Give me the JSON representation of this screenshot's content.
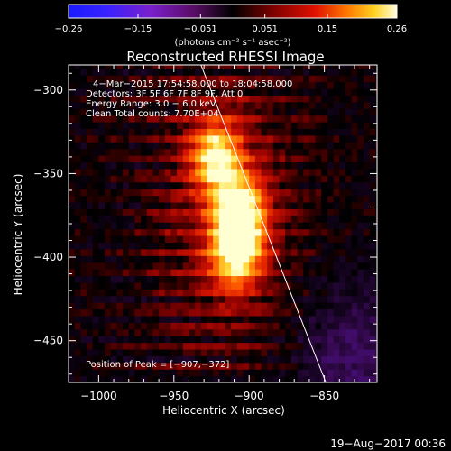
{
  "chart_data": {
    "type": "heatmap",
    "title": "Reconstructed RHESSI Image",
    "xlabel": "Heliocentric X (arcsec)",
    "ylabel": "Heliocentric Y (arcsec)",
    "xlim": [
      -1020,
      -815
    ],
    "ylim": [
      -475,
      -285
    ],
    "x_ticks": [
      -1000,
      -950,
      -900,
      -850
    ],
    "x_tick_labels": [
      "−1000",
      "−950",
      "−900",
      "−850"
    ],
    "y_ticks": [
      -300,
      -350,
      -400,
      -450
    ],
    "y_tick_labels": [
      "−300",
      "−350",
      "−400",
      "−450"
    ],
    "colorbar": {
      "range": [
        -0.26,
        0.26
      ],
      "ticks": [
        -0.26,
        -0.15,
        -0.051,
        0.051,
        0.15,
        0.26
      ],
      "tick_labels": [
        "−0.26",
        "−0.15",
        "−0.051",
        "0.051",
        "0.15",
        "0.26"
      ],
      "unit_label": "(photons cm⁻² s⁻¹ asec⁻²)"
    },
    "annotations": [
      "4−Mar−2015 17:54:58.000 to 18:04:58.000",
      "Detectors: 3F 5F 6F 7F 8F 9F, Att 0",
      "Energy Range: 3.0 − 6.0 keV",
      "Clean     Total counts: 7.70E+04"
    ],
    "peak_label": "Position of Peak = [−907,−372]",
    "peak": [
      -907,
      -372
    ],
    "sources": [
      {
        "x": -907,
        "y": -372,
        "peak": 0.26
      },
      {
        "x": -922,
        "y": -340,
        "peak": 0.23
      },
      {
        "x": -910,
        "y": -400,
        "peak": 0.16
      },
      {
        "x": -905,
        "y": -390,
        "peak": 0.12
      }
    ],
    "limb_line": [
      [
        -932,
        -285
      ],
      [
        -849,
        -475
      ]
    ]
  },
  "footer_date": "19−Aug−2017 00:36",
  "colors": {
    "background": "#000000",
    "text": "#ffffff"
  }
}
